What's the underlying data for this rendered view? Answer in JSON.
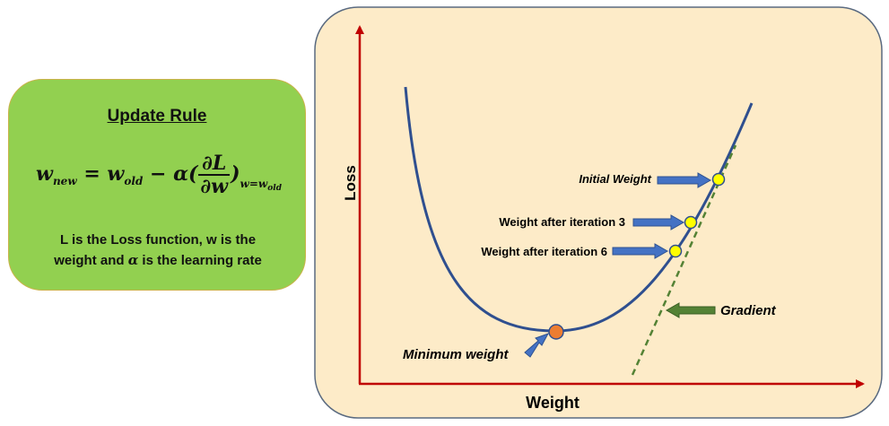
{
  "update_rule": {
    "title": "Update Rule",
    "formula": {
      "lhs": "w",
      "lhs_sub": "new",
      "equals": " = ",
      "w_old": "w",
      "w_old_sub": "old",
      "minus_alpha": " − α(",
      "numerator": "∂L",
      "denominator": "∂w",
      "close": ")",
      "eval_w": "w=w",
      "eval_sub": "old"
    },
    "description_line1": "L is the Loss function, w is the",
    "description_line2_prefix": "weight and ",
    "alpha_symbol": "α",
    "description_line2_suffix": " is the learning rate"
  },
  "graph": {
    "y_axis_label": "Loss",
    "x_axis_label": "Weight",
    "annotations": {
      "initial_weight": "Initial Weight",
      "iteration_3": "Weight after iteration 3",
      "iteration_6": "Weight after iteration 6",
      "gradient": "Gradient",
      "minimum_weight": "Minimum weight"
    }
  },
  "colors": {
    "rule_box": "#92d050",
    "graph_panel": "#fdebc8",
    "axis": "#c00000",
    "curve": "#2f4f8f",
    "arrow": "#4472c4",
    "gradient_line": "#548235",
    "point": "#ffff00",
    "minimum_point": "#ed7d31"
  }
}
